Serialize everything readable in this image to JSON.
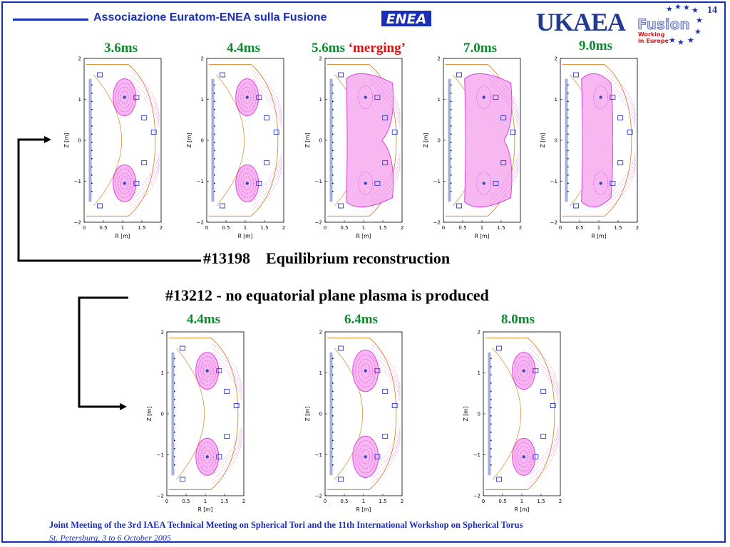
{
  "header": {
    "organization": "Associazione Euratom-ENEA sulla Fusione",
    "enea_logo_text": "ENEA",
    "ukaea_logo_text": "UKAEA",
    "fusion_logo_text": "Fusion",
    "fusion_tagline_1": "Working",
    "fusion_tagline_2": "in Europe",
    "page_number": "14"
  },
  "top_row": {
    "caption_shot": "#13198",
    "caption_text": "Equilibrium reconstruction",
    "frames": [
      {
        "time": "3.6ms",
        "state": "split"
      },
      {
        "time": "4.4ms",
        "state": "split"
      },
      {
        "time": "5.6ms",
        "note": "‘merging’",
        "state": "merging"
      },
      {
        "time": "7.0ms",
        "state": "merged"
      },
      {
        "time": "9.0ms",
        "state": "merged-small"
      }
    ]
  },
  "bottom_row": {
    "caption": "#13212 - no equatorial plane plasma is produced",
    "frames": [
      {
        "time": "4.4ms",
        "state": "split"
      },
      {
        "time": "6.4ms",
        "state": "split-large"
      },
      {
        "time": "8.0ms",
        "state": "split"
      }
    ]
  },
  "plot_axes": {
    "xlabel": "R [m]",
    "ylabel": "Z [m]",
    "xticks": [
      "0",
      "0.5",
      "1",
      "1.5",
      "2"
    ],
    "yticks": [
      "2",
      "1",
      "0",
      "−1",
      "−2"
    ]
  },
  "colors": {
    "accent_blue": "#1a2fb8",
    "time_green": "#0d8a2e",
    "merging_red": "#e01010",
    "plasma_magenta": "#e040e0",
    "plasma_fill": "#f7b8f2"
  },
  "footer": {
    "line1": "Joint Meeting of the 3rd IAEA Technical Meeting on Spherical Tori and the 11th International Workshop on Spherical Torus",
    "line2": "St. Petersburg, 3 to 6 October 2005"
  }
}
